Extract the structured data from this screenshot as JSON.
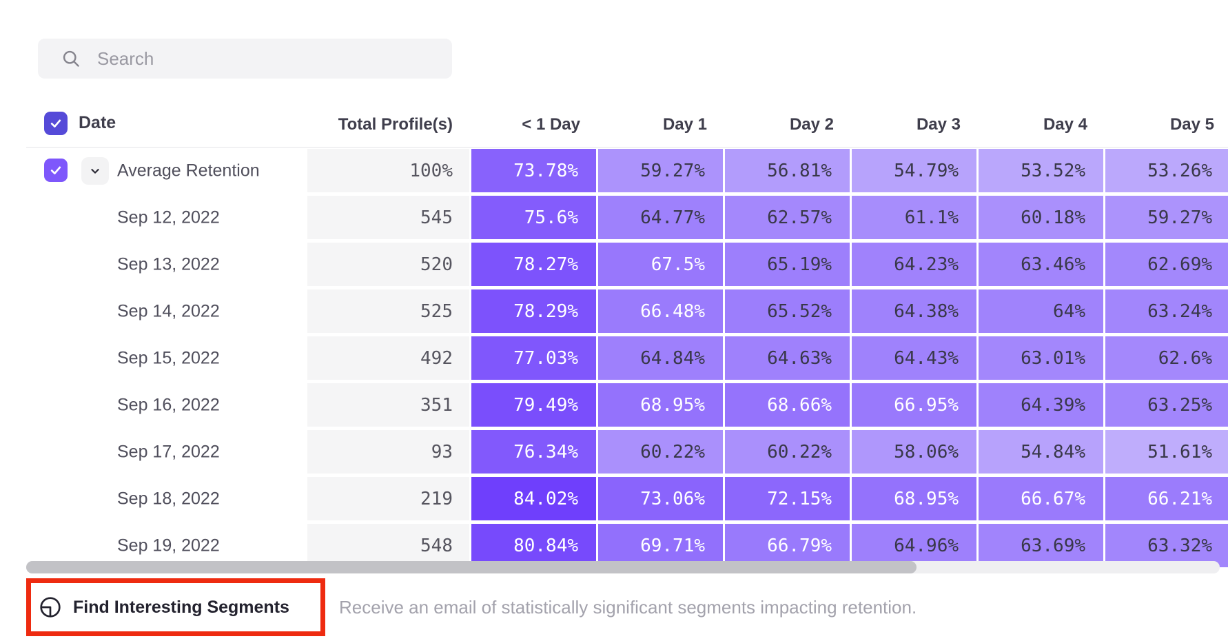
{
  "search": {
    "placeholder": "Search"
  },
  "table": {
    "columns": [
      "Date",
      "Total Profile(s)",
      "< 1 Day",
      "Day 1",
      "Day 2",
      "Day 3",
      "Day 4",
      "Day 5"
    ],
    "rows": [
      {
        "label": "Average Retention",
        "expandable": true,
        "checked": true,
        "profiles": "100%",
        "values": [
          73.78,
          59.27,
          56.81,
          54.79,
          53.52,
          53.26
        ]
      },
      {
        "label": "Sep 12, 2022",
        "expandable": false,
        "profiles": "545",
        "values": [
          75.6,
          64.77,
          62.57,
          61.1,
          60.18,
          59.27
        ]
      },
      {
        "label": "Sep 13, 2022",
        "expandable": false,
        "profiles": "520",
        "values": [
          78.27,
          67.5,
          65.19,
          64.23,
          63.46,
          62.69
        ]
      },
      {
        "label": "Sep 14, 2022",
        "expandable": false,
        "profiles": "525",
        "values": [
          78.29,
          66.48,
          65.52,
          64.38,
          64,
          63.24
        ]
      },
      {
        "label": "Sep 15, 2022",
        "expandable": false,
        "profiles": "492",
        "values": [
          77.03,
          64.84,
          64.63,
          64.43,
          63.01,
          62.6
        ]
      },
      {
        "label": "Sep 16, 2022",
        "expandable": false,
        "profiles": "351",
        "values": [
          79.49,
          68.95,
          68.66,
          66.95,
          64.39,
          63.25
        ]
      },
      {
        "label": "Sep 17, 2022",
        "expandable": false,
        "profiles": "93",
        "values": [
          76.34,
          60.22,
          60.22,
          58.06,
          54.84,
          51.61
        ]
      },
      {
        "label": "Sep 18, 2022",
        "expandable": false,
        "profiles": "219",
        "values": [
          84.02,
          73.06,
          72.15,
          68.95,
          66.67,
          66.21
        ]
      },
      {
        "label": "Sep 19, 2022",
        "expandable": false,
        "profiles": "548",
        "values": [
          80.84,
          69.71,
          66.79,
          64.96,
          63.69,
          63.32
        ]
      }
    ]
  },
  "footer": {
    "button_label": "Find Interesting Segments",
    "description": "Receive an email of statistically significant segments impacting retention."
  },
  "colors": {
    "header_checkbox": "#554ad8",
    "row_checkbox": "#7e57fb",
    "heat_light": "#cfc4fc",
    "heat_dark": "#6f3ffc",
    "heat_scale_min": 45,
    "heat_scale_max": 84,
    "white_text_min": 66,
    "cell_dark_text": "#393849",
    "annotation_red": "#ee2b10"
  },
  "chart_data": {
    "type": "heatmap",
    "title": "Retention by cohort date",
    "columns": [
      "< 1 Day",
      "Day 1",
      "Day 2",
      "Day 3",
      "Day 4",
      "Day 5"
    ],
    "rows": [
      "Average Retention",
      "Sep 12, 2022",
      "Sep 13, 2022",
      "Sep 14, 2022",
      "Sep 15, 2022",
      "Sep 16, 2022",
      "Sep 17, 2022",
      "Sep 18, 2022",
      "Sep 19, 2022"
    ],
    "total_profiles": [
      "100%",
      "545",
      "520",
      "525",
      "492",
      "351",
      "93",
      "219",
      "548"
    ],
    "values_percent": [
      [
        73.78,
        59.27,
        56.81,
        54.79,
        53.52,
        53.26
      ],
      [
        75.6,
        64.77,
        62.57,
        61.1,
        60.18,
        59.27
      ],
      [
        78.27,
        67.5,
        65.19,
        64.23,
        63.46,
        62.69
      ],
      [
        78.29,
        66.48,
        65.52,
        64.38,
        64,
        63.24
      ],
      [
        77.03,
        64.84,
        64.63,
        64.43,
        63.01,
        62.6
      ],
      [
        79.49,
        68.95,
        68.66,
        66.95,
        64.39,
        63.25
      ],
      [
        76.34,
        60.22,
        60.22,
        58.06,
        54.84,
        51.61
      ],
      [
        84.02,
        73.06,
        72.15,
        68.95,
        66.67,
        66.21
      ],
      [
        80.84,
        69.71,
        66.79,
        64.96,
        63.69,
        63.32
      ]
    ]
  }
}
